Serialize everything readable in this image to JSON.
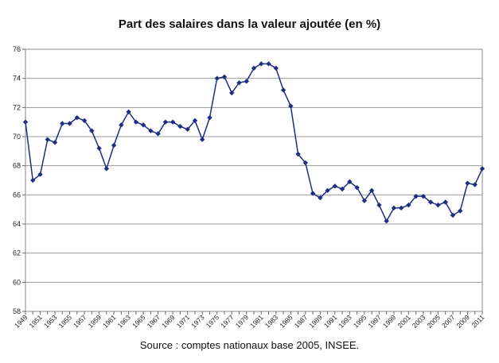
{
  "chart_data": {
    "type": "line",
    "title": "Part des salaires dans la valeur ajoutée (en %)",
    "xlabel": "",
    "ylabel": "",
    "ylim": [
      58,
      76
    ],
    "yticks": [
      "58",
      "60",
      "62",
      "64",
      "66",
      "68",
      "70",
      "72",
      "74",
      "76"
    ],
    "x_tick_labels": [
      "1949",
      "1951",
      "1953",
      "1955",
      "1957",
      "1959",
      "1961",
      "1963",
      "1965",
      "1967",
      "1969",
      "1971",
      "1973",
      "1975",
      "1977",
      "1979",
      "1981",
      "1983",
      "1985",
      "1987",
      "1989",
      "1991",
      "1993",
      "1995",
      "1997",
      "1999",
      "2001",
      "2003",
      "2005",
      "2007",
      "2009",
      "2011"
    ],
    "series": [
      {
        "name": "Part des salaires",
        "color": "#1f2d84",
        "x": [
          1949,
          1950,
          1951,
          1952,
          1953,
          1954,
          1955,
          1956,
          1957,
          1958,
          1959,
          1960,
          1961,
          1962,
          1963,
          1964,
          1965,
          1966,
          1967,
          1968,
          1969,
          1970,
          1971,
          1972,
          1973,
          1974,
          1975,
          1976,
          1977,
          1978,
          1979,
          1980,
          1981,
          1982,
          1983,
          1984,
          1985,
          1986,
          1987,
          1988,
          1989,
          1990,
          1991,
          1992,
          1993,
          1994,
          1995,
          1996,
          1997,
          1998,
          1999,
          2000,
          2001,
          2002,
          2003,
          2004,
          2005,
          2006,
          2007,
          2008,
          2009,
          2010,
          2011
        ],
        "values": [
          71.0,
          67.0,
          67.4,
          69.8,
          69.6,
          70.9,
          70.9,
          71.3,
          71.1,
          70.4,
          69.2,
          67.8,
          69.4,
          70.8,
          71.7,
          71.0,
          70.8,
          70.4,
          70.2,
          71.0,
          71.0,
          70.7,
          70.5,
          71.1,
          69.8,
          71.3,
          74.0,
          74.1,
          73.0,
          73.7,
          73.8,
          74.7,
          75.0,
          75.0,
          74.7,
          73.2,
          72.1,
          68.8,
          68.2,
          66.1,
          65.8,
          66.3,
          66.6,
          66.4,
          66.9,
          66.5,
          65.6,
          66.3,
          65.3,
          64.2,
          65.1,
          65.1,
          65.3,
          65.9,
          65.9,
          65.5,
          65.3,
          65.5,
          64.6,
          64.9,
          66.8,
          66.7,
          67.8
        ]
      }
    ]
  },
  "source": "Source : comptes nationaux base 2005, INSEE."
}
